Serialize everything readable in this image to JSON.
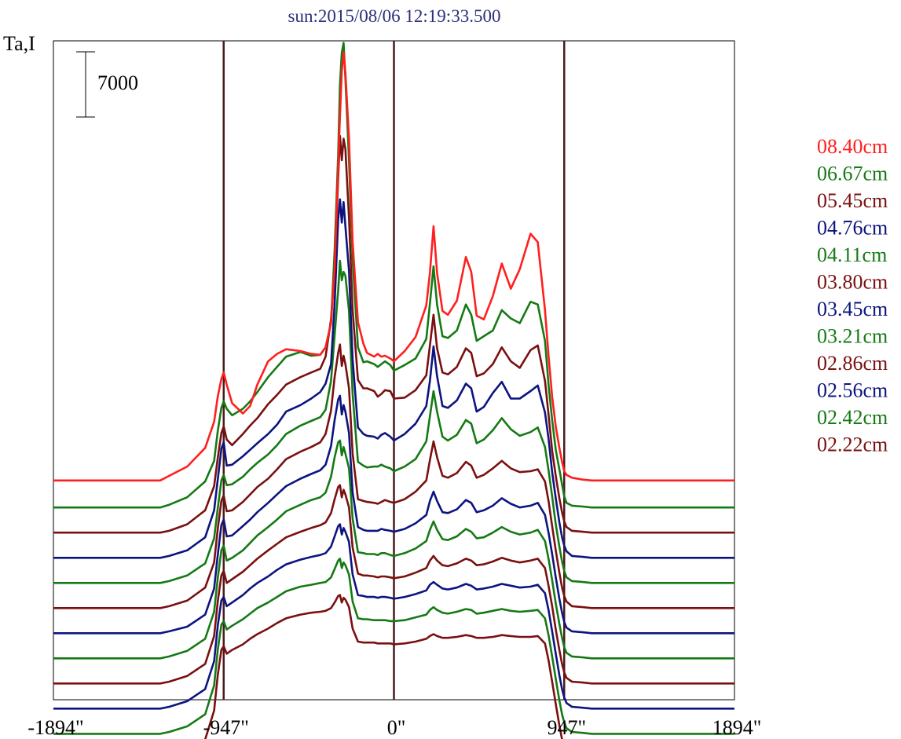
{
  "title": "sun:2015/08/06 12:19:33.500",
  "ylabel": "Ta,I",
  "colors": {
    "title": "#2b2f7a",
    "red": "#ff1f1f",
    "green": "#157a15",
    "maroon": "#7a1010",
    "blue": "#0c1480",
    "vline": "#4a1b1b",
    "frame": "#000000"
  },
  "chart_data": {
    "type": "line",
    "title": "sun:2015/08/06 12:19:33.500",
    "ylabel": "Ta,I",
    "xlim": [
      -1894,
      1894
    ],
    "x_ticks": [
      -1894,
      -947,
      0,
      947,
      1894
    ],
    "x_tick_labels": [
      "-1894\"",
      "-947\"",
      "0\"",
      "947\"",
      "1894\""
    ],
    "vertical_lines_at": [
      -947,
      0,
      947
    ],
    "scale_bar": {
      "label": "7000",
      "value": 7000
    },
    "legend_position": "right",
    "legend": [
      "08.40cm",
      "06.67cm",
      "05.45cm",
      "04.76cm",
      "04.11cm",
      "03.80cm",
      "03.45cm",
      "03.21cm",
      "02.86cm",
      "02.56cm",
      "02.42cm",
      "02.22cm"
    ],
    "profile_x": [
      -1894,
      -1300,
      -1250,
      -1150,
      -1050,
      -1000,
      -980,
      -960,
      -947,
      -930,
      -900,
      -840,
      -800,
      -760,
      -700,
      -650,
      -600,
      -520,
      -460,
      -410,
      -380,
      -350,
      -330,
      -310,
      -300,
      -290,
      -280,
      -270,
      -250,
      -230,
      -200,
      -170,
      -150,
      -110,
      -90,
      -70,
      -50,
      -20,
      0,
      60,
      120,
      180,
      200,
      220,
      240,
      270,
      300,
      350,
      400,
      430,
      460,
      500,
      550,
      600,
      650,
      700,
      760,
      800,
      840,
      860,
      880,
      900,
      920,
      935,
      947,
      960,
      990,
      1050,
      1100,
      1150,
      1300,
      1894
    ],
    "series": [
      {
        "name": "08.40cm",
        "color": "red",
        "offset": 22700,
        "values": [
          0,
          0,
          500,
          1500,
          3500,
          6300,
          9000,
          10900,
          11600,
          10300,
          8300,
          7200,
          8000,
          10300,
          12800,
          13600,
          14100,
          13900,
          13600,
          13500,
          14300,
          16900,
          22900,
          33800,
          39200,
          43900,
          46000,
          43800,
          36700,
          25600,
          17000,
          14700,
          13700,
          13300,
          13600,
          13300,
          13400,
          13100,
          12800,
          13900,
          15400,
          18800,
          22300,
          27300,
          22300,
          18200,
          17800,
          19300,
          24000,
          22400,
          17700,
          17300,
          19800,
          23300,
          20600,
          22700,
          26500,
          25600,
          18300,
          13400,
          9000,
          5800,
          3500,
          2000,
          1000,
          600,
          300,
          100,
          0,
          0,
          0,
          0
        ]
      },
      {
        "name": "06.67cm",
        "color": "green",
        "offset": 19800,
        "values": [
          0,
          0,
          300,
          1100,
          2800,
          5000,
          8200,
          10700,
          11400,
          10600,
          9900,
          10600,
          11400,
          12400,
          14000,
          15100,
          16200,
          16700,
          16300,
          16400,
          17200,
          19800,
          27600,
          37900,
          45400,
          48800,
          49900,
          46100,
          37300,
          26600,
          17200,
          15600,
          15700,
          15400,
          15100,
          15400,
          15700,
          15300,
          14700,
          15300,
          16000,
          18100,
          21900,
          25900,
          21800,
          18400,
          18200,
          19000,
          21800,
          20700,
          17900,
          18400,
          19000,
          21200,
          20300,
          19800,
          22100,
          21800,
          17900,
          13200,
          9400,
          6200,
          4100,
          2500,
          1200,
          500,
          200,
          100,
          0,
          0,
          0,
          0
        ]
      },
      {
        "name": "05.45cm",
        "color": "maroon",
        "offset": 17100,
        "values": [
          0,
          0,
          200,
          900,
          2400,
          5000,
          8000,
          10700,
          11400,
          10000,
          9400,
          10600,
          11500,
          12300,
          13800,
          14800,
          15900,
          16700,
          17200,
          17600,
          18900,
          22900,
          28100,
          38200,
          42600,
          40000,
          42300,
          41200,
          33800,
          23900,
          16400,
          15500,
          15500,
          15200,
          14600,
          14900,
          15300,
          15200,
          14400,
          14500,
          15300,
          16900,
          20100,
          23400,
          19800,
          17200,
          17000,
          17800,
          19800,
          19300,
          16800,
          17100,
          18100,
          19900,
          18400,
          17700,
          19600,
          20100,
          16300,
          12700,
          8800,
          6100,
          3700,
          2200,
          1200,
          600,
          200,
          100,
          0,
          0,
          0,
          0
        ]
      },
      {
        "name": "04.76cm",
        "color": "blue",
        "offset": 14400,
        "values": [
          0,
          0,
          200,
          800,
          2200,
          5100,
          8400,
          11700,
          12400,
          9900,
          10000,
          10900,
          11600,
          12300,
          13300,
          14300,
          15700,
          16400,
          17100,
          17800,
          18700,
          20800,
          27300,
          36300,
          38500,
          36000,
          38200,
          35600,
          30800,
          21300,
          14000,
          13300,
          13100,
          13000,
          12800,
          13200,
          13400,
          13000,
          12600,
          13300,
          14400,
          16300,
          19000,
          22700,
          19500,
          16300,
          16100,
          16900,
          18700,
          18200,
          15700,
          16200,
          17700,
          18900,
          17100,
          17100,
          17900,
          18500,
          15600,
          12800,
          9200,
          6400,
          3800,
          2200,
          1300,
          700,
          200,
          100,
          0,
          0,
          0,
          0
        ]
      },
      {
        "name": "04.11cm",
        "color": "green",
        "offset": 11700,
        "values": [
          0,
          0,
          200,
          800,
          2100,
          4800,
          8000,
          11000,
          11600,
          10500,
          10600,
          11400,
          12200,
          12900,
          13800,
          14800,
          16000,
          16900,
          17400,
          17800,
          18600,
          21700,
          26600,
          31400,
          34600,
          32500,
          33400,
          33000,
          29200,
          20300,
          13000,
          12600,
          12400,
          12500,
          12500,
          12700,
          12500,
          12300,
          12000,
          12500,
          13300,
          15200,
          17900,
          20600,
          18400,
          15700,
          15300,
          15900,
          17500,
          17100,
          15000,
          15400,
          16400,
          17700,
          16500,
          15800,
          16200,
          16700,
          14600,
          12100,
          9300,
          6300,
          3900,
          2300,
          1300,
          600,
          200,
          100,
          0,
          0,
          0,
          0
        ]
      },
      {
        "name": "03.80cm",
        "color": "maroon",
        "offset": 9000,
        "values": [
          0,
          0,
          200,
          800,
          2200,
          4900,
          8500,
          11500,
          12100,
          10400,
          10500,
          11400,
          12200,
          13000,
          13900,
          14900,
          16000,
          16800,
          17300,
          17800,
          18700,
          21200,
          24800,
          27400,
          28300,
          26000,
          27100,
          26200,
          23600,
          16600,
          11700,
          11500,
          11400,
          11300,
          11200,
          11400,
          11600,
          11400,
          11300,
          11700,
          12500,
          13700,
          15900,
          17900,
          16200,
          14200,
          14000,
          14500,
          15700,
          15300,
          14000,
          14300,
          15000,
          15800,
          15000,
          14600,
          14700,
          14900,
          13600,
          11500,
          8800,
          6200,
          3800,
          2200,
          1300,
          700,
          200,
          100,
          0,
          0,
          0,
          0
        ]
      },
      {
        "name": "03.45cm",
        "color": "blue",
        "offset": 6300,
        "values": [
          0,
          0,
          200,
          700,
          2000,
          4800,
          8400,
          11600,
          12200,
          10400,
          10500,
          11500,
          12200,
          13000,
          14000,
          14900,
          15800,
          16600,
          17100,
          17500,
          18100,
          20100,
          22900,
          25100,
          25500,
          23500,
          24500,
          23800,
          21500,
          15100,
          11400,
          11100,
          11000,
          11000,
          11000,
          11200,
          11100,
          11000,
          10900,
          11200,
          11800,
          12700,
          14200,
          15200,
          14200,
          13000,
          12900,
          13300,
          14300,
          14000,
          13000,
          13200,
          13700,
          14500,
          13900,
          13500,
          13700,
          14000,
          12700,
          10800,
          8500,
          6000,
          3700,
          2200,
          1200,
          600,
          200,
          100,
          0,
          0,
          0,
          0
        ]
      },
      {
        "name": "03.21cm",
        "color": "green",
        "offset": 3600,
        "values": [
          0,
          0,
          200,
          800,
          2100,
          5000,
          8600,
          11600,
          12100,
          10500,
          10800,
          11600,
          12400,
          13200,
          14100,
          14900,
          15800,
          16500,
          17000,
          17300,
          17800,
          19500,
          21600,
          23200,
          23400,
          21800,
          22700,
          22000,
          20400,
          15000,
          11400,
          11300,
          11200,
          11200,
          11100,
          11300,
          11300,
          11100,
          11000,
          11300,
          11800,
          12600,
          13800,
          14700,
          13800,
          12800,
          12700,
          13100,
          13900,
          13600,
          12900,
          13000,
          13500,
          14100,
          13600,
          13300,
          13500,
          13800,
          12600,
          10700,
          8400,
          5900,
          3700,
          2200,
          1200,
          600,
          200,
          100,
          0,
          0,
          0,
          0
        ]
      },
      {
        "name": "02.86cm",
        "color": "maroon",
        "offset": 900,
        "values": [
          0,
          0,
          200,
          800,
          2100,
          5100,
          8800,
          11600,
          12100,
          10800,
          11200,
          12000,
          12700,
          13400,
          14300,
          15000,
          15700,
          16300,
          16700,
          17000,
          17300,
          18300,
          19800,
          21100,
          21300,
          20000,
          20800,
          20300,
          18900,
          14600,
          11800,
          11600,
          11600,
          11500,
          11400,
          11500,
          11500,
          11400,
          11300,
          11500,
          11900,
          12400,
          13200,
          13700,
          13200,
          12700,
          12600,
          12900,
          13400,
          13200,
          12700,
          12800,
          13100,
          13500,
          13200,
          13000,
          13200,
          13400,
          12400,
          10500,
          8300,
          5800,
          3600,
          2100,
          1200,
          600,
          200,
          100,
          0,
          0,
          0,
          0
        ]
      },
      {
        "name": "02.56cm",
        "color": "blue",
        "offset": -1800,
        "values": [
          0,
          0,
          200,
          800,
          2100,
          5100,
          8900,
          11600,
          12000,
          11000,
          11400,
          12200,
          12900,
          13500,
          14200,
          14900,
          15500,
          16000,
          16300,
          16500,
          16700,
          17400,
          18500,
          19600,
          19800,
          18700,
          19400,
          19000,
          17900,
          14400,
          12200,
          12100,
          12000,
          12000,
          11900,
          12000,
          12000,
          11900,
          11800,
          12000,
          12300,
          12700,
          13300,
          13600,
          13300,
          12900,
          12800,
          13000,
          13400,
          13200,
          12800,
          12900,
          13100,
          13400,
          13200,
          13000,
          13100,
          13300,
          12400,
          10600,
          8300,
          5900,
          3600,
          2100,
          1200,
          600,
          200,
          100,
          0,
          0,
          0,
          0
        ]
      },
      {
        "name": "02.42cm",
        "color": "green",
        "offset": -4500,
        "values": [
          0,
          0,
          200,
          800,
          2100,
          5200,
          9000,
          11700,
          12100,
          11200,
          11600,
          12300,
          12900,
          13500,
          14100,
          14700,
          15300,
          15800,
          16000,
          16200,
          16300,
          16800,
          17700,
          18600,
          18800,
          17800,
          18400,
          18100,
          17100,
          14200,
          12400,
          12300,
          12300,
          12200,
          12200,
          12200,
          12200,
          12100,
          12100,
          12200,
          12500,
          12800,
          13300,
          13600,
          13300,
          13000,
          12900,
          13100,
          13400,
          13300,
          12900,
          13000,
          13200,
          13400,
          13200,
          13100,
          13200,
          13300,
          12400,
          10600,
          8300,
          5900,
          3600,
          2100,
          1200,
          600,
          200,
          100,
          0,
          0,
          0,
          0
        ]
      },
      {
        "name": "02.22cm",
        "color": "maroon",
        "offset": -7200,
        "values": [
          0,
          0,
          200,
          800,
          2100,
          5200,
          9000,
          11700,
          12100,
          11300,
          11700,
          12300,
          12900,
          13400,
          14000,
          14600,
          15100,
          15500,
          15700,
          15800,
          15900,
          16200,
          16800,
          17500,
          17600,
          16800,
          17300,
          17100,
          16300,
          14000,
          12600,
          12500,
          12500,
          12500,
          12400,
          12400,
          12400,
          12400,
          12300,
          12400,
          12600,
          12900,
          13200,
          13400,
          13200,
          13000,
          13000,
          13100,
          13300,
          13200,
          13000,
          13000,
          13100,
          13300,
          13200,
          13100,
          13100,
          13200,
          12400,
          10600,
          8300,
          5900,
          3600,
          2100,
          1200,
          600,
          200,
          100,
          0,
          0,
          0,
          0
        ]
      }
    ]
  }
}
